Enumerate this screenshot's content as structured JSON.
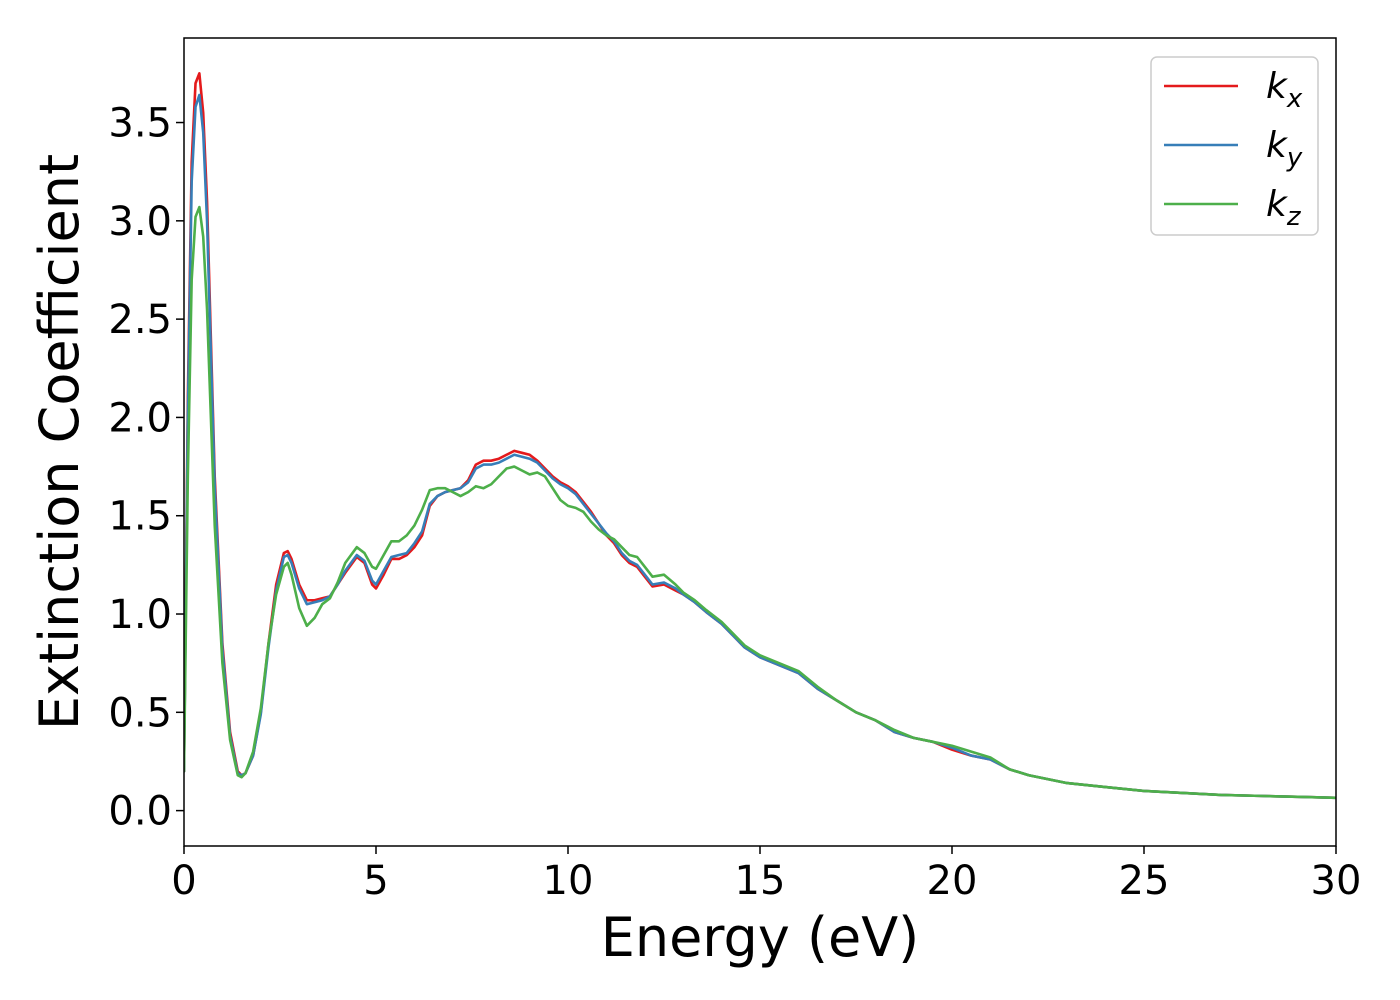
{
  "chart_data": {
    "type": "line",
    "xlabel": "Energy (eV)",
    "ylabel": "Extinction Coefficient",
    "xlim": [
      0,
      30
    ],
    "ylim": [
      -0.18,
      3.93
    ],
    "x_ticks": [
      "0",
      "5",
      "10",
      "15",
      "20",
      "25",
      "30"
    ],
    "x_tick_values": [
      0,
      5,
      10,
      15,
      20,
      25,
      30
    ],
    "y_ticks": [
      "0.0",
      "0.5",
      "1.0",
      "1.5",
      "2.0",
      "2.5",
      "3.0",
      "3.5"
    ],
    "y_tick_values": [
      0.0,
      0.5,
      1.0,
      1.5,
      2.0,
      2.5,
      3.0,
      3.5
    ],
    "grid": false,
    "legend_position": "top-right",
    "series": [
      {
        "name": "k",
        "sub": "x",
        "color": "#e41a1c",
        "points": [
          [
            0,
            0.2
          ],
          [
            0.1,
            2.1
          ],
          [
            0.2,
            3.3
          ],
          [
            0.3,
            3.7
          ],
          [
            0.4,
            3.75
          ],
          [
            0.5,
            3.55
          ],
          [
            0.6,
            3.1
          ],
          [
            0.8,
            1.7
          ],
          [
            1.0,
            0.85
          ],
          [
            1.2,
            0.4
          ],
          [
            1.4,
            0.2
          ],
          [
            1.5,
            0.18
          ],
          [
            1.6,
            0.19
          ],
          [
            1.8,
            0.28
          ],
          [
            2.0,
            0.5
          ],
          [
            2.2,
            0.85
          ],
          [
            2.4,
            1.15
          ],
          [
            2.6,
            1.31
          ],
          [
            2.7,
            1.32
          ],
          [
            2.8,
            1.28
          ],
          [
            3.0,
            1.15
          ],
          [
            3.2,
            1.07
          ],
          [
            3.4,
            1.07
          ],
          [
            3.6,
            1.08
          ],
          [
            3.8,
            1.09
          ],
          [
            4.0,
            1.15
          ],
          [
            4.2,
            1.21
          ],
          [
            4.5,
            1.29
          ],
          [
            4.7,
            1.26
          ],
          [
            4.9,
            1.15
          ],
          [
            5.0,
            1.13
          ],
          [
            5.2,
            1.2
          ],
          [
            5.4,
            1.28
          ],
          [
            5.6,
            1.28
          ],
          [
            5.8,
            1.3
          ],
          [
            6.0,
            1.34
          ],
          [
            6.2,
            1.4
          ],
          [
            6.4,
            1.55
          ],
          [
            6.6,
            1.6
          ],
          [
            6.8,
            1.62
          ],
          [
            7.0,
            1.63
          ],
          [
            7.2,
            1.64
          ],
          [
            7.4,
            1.68
          ],
          [
            7.6,
            1.76
          ],
          [
            7.8,
            1.78
          ],
          [
            8.0,
            1.78
          ],
          [
            8.2,
            1.79
          ],
          [
            8.4,
            1.81
          ],
          [
            8.6,
            1.83
          ],
          [
            8.8,
            1.82
          ],
          [
            9.0,
            1.81
          ],
          [
            9.2,
            1.78
          ],
          [
            9.4,
            1.74
          ],
          [
            9.6,
            1.7
          ],
          [
            9.8,
            1.67
          ],
          [
            10.0,
            1.65
          ],
          [
            10.2,
            1.62
          ],
          [
            10.4,
            1.57
          ],
          [
            10.6,
            1.52
          ],
          [
            10.8,
            1.46
          ],
          [
            11.0,
            1.4
          ],
          [
            11.2,
            1.36
          ],
          [
            11.4,
            1.3
          ],
          [
            11.6,
            1.26
          ],
          [
            11.8,
            1.24
          ],
          [
            12.0,
            1.19
          ],
          [
            12.2,
            1.14
          ],
          [
            12.5,
            1.15
          ],
          [
            12.8,
            1.12
          ],
          [
            13.0,
            1.1
          ],
          [
            13.3,
            1.06
          ],
          [
            13.6,
            1.01
          ],
          [
            14.0,
            0.95
          ],
          [
            14.3,
            0.89
          ],
          [
            14.6,
            0.83
          ],
          [
            15.0,
            0.78
          ],
          [
            15.5,
            0.74
          ],
          [
            16.0,
            0.7
          ],
          [
            16.5,
            0.62
          ],
          [
            17.0,
            0.56
          ],
          [
            17.5,
            0.5
          ],
          [
            18.0,
            0.46
          ],
          [
            18.5,
            0.4
          ],
          [
            19.0,
            0.37
          ],
          [
            19.5,
            0.35
          ],
          [
            20.0,
            0.31
          ],
          [
            20.5,
            0.28
          ],
          [
            21.0,
            0.26
          ],
          [
            21.5,
            0.21
          ],
          [
            22.0,
            0.18
          ],
          [
            23.0,
            0.14
          ],
          [
            24.0,
            0.12
          ],
          [
            25.0,
            0.1
          ],
          [
            26.0,
            0.09
          ],
          [
            27.0,
            0.08
          ],
          [
            28.0,
            0.075
          ],
          [
            29.0,
            0.07
          ],
          [
            30.0,
            0.065
          ]
        ]
      },
      {
        "name": "k",
        "sub": "y",
        "color": "#377eb8",
        "points": [
          [
            0,
            0.2
          ],
          [
            0.1,
            2.0
          ],
          [
            0.2,
            3.2
          ],
          [
            0.3,
            3.58
          ],
          [
            0.4,
            3.64
          ],
          [
            0.5,
            3.45
          ],
          [
            0.6,
            3.0
          ],
          [
            0.8,
            1.65
          ],
          [
            1.0,
            0.82
          ],
          [
            1.2,
            0.38
          ],
          [
            1.4,
            0.19
          ],
          [
            1.5,
            0.18
          ],
          [
            1.6,
            0.19
          ],
          [
            1.8,
            0.28
          ],
          [
            2.0,
            0.49
          ],
          [
            2.2,
            0.83
          ],
          [
            2.4,
            1.12
          ],
          [
            2.6,
            1.29
          ],
          [
            2.7,
            1.3
          ],
          [
            2.8,
            1.26
          ],
          [
            3.0,
            1.13
          ],
          [
            3.2,
            1.05
          ],
          [
            3.4,
            1.06
          ],
          [
            3.6,
            1.07
          ],
          [
            3.8,
            1.09
          ],
          [
            4.0,
            1.15
          ],
          [
            4.2,
            1.22
          ],
          [
            4.5,
            1.3
          ],
          [
            4.7,
            1.27
          ],
          [
            4.9,
            1.17
          ],
          [
            5.0,
            1.15
          ],
          [
            5.2,
            1.22
          ],
          [
            5.4,
            1.29
          ],
          [
            5.6,
            1.3
          ],
          [
            5.8,
            1.31
          ],
          [
            6.0,
            1.36
          ],
          [
            6.2,
            1.42
          ],
          [
            6.4,
            1.56
          ],
          [
            6.6,
            1.6
          ],
          [
            6.8,
            1.62
          ],
          [
            7.0,
            1.63
          ],
          [
            7.2,
            1.64
          ],
          [
            7.4,
            1.67
          ],
          [
            7.6,
            1.74
          ],
          [
            7.8,
            1.76
          ],
          [
            8.0,
            1.76
          ],
          [
            8.2,
            1.77
          ],
          [
            8.4,
            1.79
          ],
          [
            8.6,
            1.81
          ],
          [
            8.8,
            1.8
          ],
          [
            9.0,
            1.79
          ],
          [
            9.2,
            1.77
          ],
          [
            9.4,
            1.73
          ],
          [
            9.6,
            1.69
          ],
          [
            9.8,
            1.66
          ],
          [
            10.0,
            1.64
          ],
          [
            10.2,
            1.61
          ],
          [
            10.4,
            1.56
          ],
          [
            10.6,
            1.51
          ],
          [
            10.8,
            1.46
          ],
          [
            11.0,
            1.41
          ],
          [
            11.2,
            1.37
          ],
          [
            11.4,
            1.31
          ],
          [
            11.6,
            1.27
          ],
          [
            11.8,
            1.25
          ],
          [
            12.0,
            1.2
          ],
          [
            12.2,
            1.15
          ],
          [
            12.5,
            1.16
          ],
          [
            12.8,
            1.13
          ],
          [
            13.0,
            1.1
          ],
          [
            13.3,
            1.06
          ],
          [
            13.6,
            1.01
          ],
          [
            14.0,
            0.95
          ],
          [
            14.3,
            0.89
          ],
          [
            14.6,
            0.83
          ],
          [
            15.0,
            0.78
          ],
          [
            15.5,
            0.74
          ],
          [
            16.0,
            0.7
          ],
          [
            16.5,
            0.62
          ],
          [
            17.0,
            0.56
          ],
          [
            17.5,
            0.5
          ],
          [
            18.0,
            0.46
          ],
          [
            18.5,
            0.4
          ],
          [
            19.0,
            0.37
          ],
          [
            19.5,
            0.35
          ],
          [
            20.0,
            0.32
          ],
          [
            20.5,
            0.28
          ],
          [
            21.0,
            0.26
          ],
          [
            21.5,
            0.21
          ],
          [
            22.0,
            0.18
          ],
          [
            23.0,
            0.14
          ],
          [
            24.0,
            0.12
          ],
          [
            25.0,
            0.1
          ],
          [
            26.0,
            0.09
          ],
          [
            27.0,
            0.08
          ],
          [
            28.0,
            0.075
          ],
          [
            29.0,
            0.07
          ],
          [
            30.0,
            0.065
          ]
        ]
      },
      {
        "name": "k",
        "sub": "z",
        "color": "#4daf4a",
        "points": [
          [
            0,
            0.2
          ],
          [
            0.1,
            1.7
          ],
          [
            0.2,
            2.7
          ],
          [
            0.3,
            3.02
          ],
          [
            0.4,
            3.07
          ],
          [
            0.5,
            2.92
          ],
          [
            0.6,
            2.55
          ],
          [
            0.8,
            1.45
          ],
          [
            1.0,
            0.75
          ],
          [
            1.2,
            0.36
          ],
          [
            1.4,
            0.18
          ],
          [
            1.5,
            0.17
          ],
          [
            1.6,
            0.19
          ],
          [
            1.8,
            0.3
          ],
          [
            2.0,
            0.52
          ],
          [
            2.2,
            0.85
          ],
          [
            2.4,
            1.1
          ],
          [
            2.6,
            1.24
          ],
          [
            2.7,
            1.26
          ],
          [
            2.8,
            1.2
          ],
          [
            3.0,
            1.03
          ],
          [
            3.2,
            0.94
          ],
          [
            3.4,
            0.98
          ],
          [
            3.6,
            1.05
          ],
          [
            3.8,
            1.08
          ],
          [
            4.0,
            1.16
          ],
          [
            4.2,
            1.26
          ],
          [
            4.5,
            1.34
          ],
          [
            4.7,
            1.31
          ],
          [
            4.9,
            1.24
          ],
          [
            5.0,
            1.23
          ],
          [
            5.2,
            1.3
          ],
          [
            5.4,
            1.37
          ],
          [
            5.6,
            1.37
          ],
          [
            5.8,
            1.4
          ],
          [
            6.0,
            1.45
          ],
          [
            6.2,
            1.53
          ],
          [
            6.4,
            1.63
          ],
          [
            6.6,
            1.64
          ],
          [
            6.8,
            1.64
          ],
          [
            7.0,
            1.62
          ],
          [
            7.2,
            1.6
          ],
          [
            7.4,
            1.62
          ],
          [
            7.6,
            1.65
          ],
          [
            7.8,
            1.64
          ],
          [
            8.0,
            1.66
          ],
          [
            8.2,
            1.7
          ],
          [
            8.4,
            1.74
          ],
          [
            8.6,
            1.75
          ],
          [
            8.8,
            1.73
          ],
          [
            9.0,
            1.71
          ],
          [
            9.2,
            1.72
          ],
          [
            9.4,
            1.7
          ],
          [
            9.6,
            1.64
          ],
          [
            9.8,
            1.58
          ],
          [
            10.0,
            1.55
          ],
          [
            10.2,
            1.54
          ],
          [
            10.4,
            1.52
          ],
          [
            10.6,
            1.47
          ],
          [
            10.8,
            1.43
          ],
          [
            11.0,
            1.4
          ],
          [
            11.2,
            1.38
          ],
          [
            11.4,
            1.34
          ],
          [
            11.6,
            1.3
          ],
          [
            11.8,
            1.29
          ],
          [
            12.0,
            1.24
          ],
          [
            12.2,
            1.19
          ],
          [
            12.5,
            1.2
          ],
          [
            12.8,
            1.15
          ],
          [
            13.0,
            1.11
          ],
          [
            13.3,
            1.07
          ],
          [
            13.6,
            1.02
          ],
          [
            14.0,
            0.96
          ],
          [
            14.3,
            0.9
          ],
          [
            14.6,
            0.84
          ],
          [
            15.0,
            0.79
          ],
          [
            15.5,
            0.75
          ],
          [
            16.0,
            0.71
          ],
          [
            16.5,
            0.63
          ],
          [
            17.0,
            0.56
          ],
          [
            17.5,
            0.5
          ],
          [
            18.0,
            0.46
          ],
          [
            18.5,
            0.41
          ],
          [
            19.0,
            0.37
          ],
          [
            19.5,
            0.35
          ],
          [
            20.0,
            0.33
          ],
          [
            20.5,
            0.3
          ],
          [
            21.0,
            0.27
          ],
          [
            21.5,
            0.21
          ],
          [
            22.0,
            0.18
          ],
          [
            23.0,
            0.14
          ],
          [
            24.0,
            0.12
          ],
          [
            25.0,
            0.1
          ],
          [
            26.0,
            0.09
          ],
          [
            27.0,
            0.08
          ],
          [
            28.0,
            0.075
          ],
          [
            29.0,
            0.07
          ],
          [
            30.0,
            0.065
          ]
        ]
      }
    ]
  }
}
